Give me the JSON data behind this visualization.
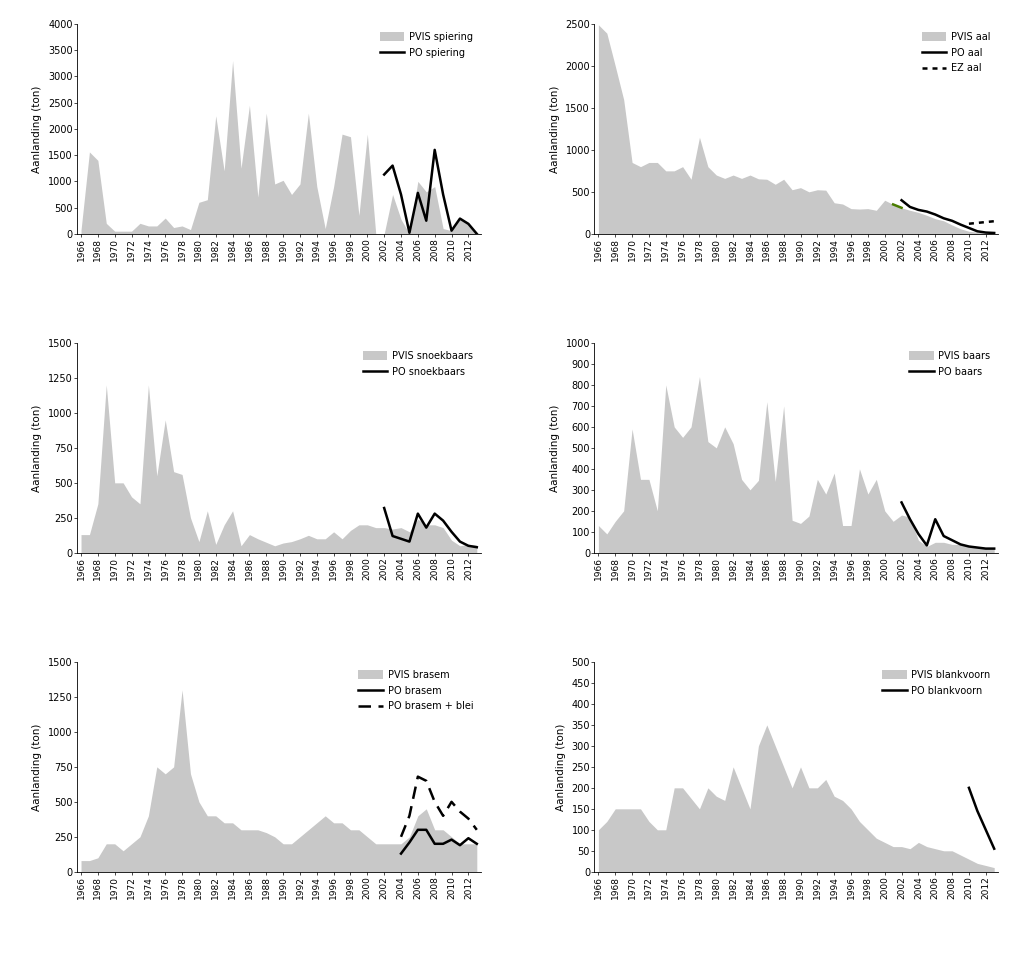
{
  "years": [
    1966,
    1967,
    1968,
    1969,
    1970,
    1971,
    1972,
    1973,
    1974,
    1975,
    1976,
    1977,
    1978,
    1979,
    1980,
    1981,
    1982,
    1983,
    1984,
    1985,
    1986,
    1987,
    1988,
    1989,
    1990,
    1991,
    1992,
    1993,
    1994,
    1995,
    1996,
    1997,
    1998,
    1999,
    2000,
    2001,
    2002,
    2003,
    2004,
    2005,
    2006,
    2007,
    2008,
    2009,
    2010,
    2011,
    2012,
    2013
  ],
  "spiering_pvis": [
    70,
    1560,
    1400,
    200,
    50,
    50,
    50,
    200,
    150,
    150,
    300,
    120,
    150,
    80,
    600,
    650,
    2250,
    1200,
    3300,
    1250,
    2450,
    700,
    2300,
    950,
    1020,
    750,
    950,
    2300,
    900,
    100,
    900,
    1900,
    1850,
    350,
    1900,
    0,
    0,
    750,
    275,
    0,
    1000,
    800,
    900,
    100,
    60,
    290,
    190,
    0
  ],
  "spiering_po": [
    null,
    null,
    null,
    null,
    null,
    null,
    null,
    null,
    null,
    null,
    null,
    null,
    null,
    null,
    null,
    null,
    null,
    null,
    null,
    null,
    null,
    null,
    null,
    null,
    null,
    null,
    null,
    null,
    null,
    null,
    null,
    null,
    null,
    null,
    null,
    null,
    1130,
    1300,
    750,
    20,
    780,
    250,
    1600,
    750,
    60,
    290,
    190,
    0
  ],
  "aal_pvis": [
    2490,
    2390,
    2000,
    1600,
    850,
    800,
    850,
    850,
    750,
    750,
    800,
    650,
    1150,
    800,
    700,
    660,
    700,
    660,
    700,
    655,
    650,
    590,
    650,
    525,
    550,
    500,
    525,
    520,
    370,
    355,
    300,
    295,
    300,
    280,
    400,
    350,
    310,
    280,
    255,
    220,
    180,
    155,
    105,
    60,
    30,
    20,
    10,
    10
  ],
  "aal_po": [
    null,
    null,
    null,
    null,
    null,
    null,
    null,
    null,
    null,
    null,
    null,
    null,
    null,
    null,
    null,
    null,
    null,
    null,
    null,
    null,
    null,
    null,
    null,
    null,
    null,
    null,
    null,
    null,
    null,
    null,
    null,
    null,
    null,
    null,
    null,
    null,
    400,
    320,
    285,
    265,
    230,
    185,
    155,
    110,
    70,
    30,
    15,
    10
  ],
  "aal_ez": [
    null,
    null,
    null,
    null,
    null,
    null,
    null,
    null,
    null,
    null,
    null,
    null,
    null,
    null,
    null,
    null,
    null,
    null,
    null,
    null,
    null,
    null,
    null,
    null,
    null,
    null,
    null,
    null,
    null,
    null,
    null,
    null,
    null,
    null,
    null,
    null,
    null,
    null,
    null,
    null,
    null,
    null,
    null,
    null,
    120,
    130,
    140,
    150
  ],
  "snoekbaars_pvis": [
    130,
    130,
    350,
    1200,
    500,
    500,
    400,
    350,
    1200,
    550,
    950,
    580,
    560,
    250,
    80,
    300,
    60,
    200,
    300,
    50,
    130,
    100,
    75,
    50,
    70,
    80,
    100,
    125,
    100,
    100,
    150,
    100,
    160,
    200,
    200,
    180,
    180,
    170,
    180,
    150,
    240,
    200,
    200,
    180,
    90,
    50,
    60,
    55
  ],
  "snoekbaars_po": [
    null,
    null,
    null,
    null,
    null,
    null,
    null,
    null,
    null,
    null,
    null,
    null,
    null,
    null,
    null,
    null,
    null,
    null,
    null,
    null,
    null,
    null,
    null,
    null,
    null,
    null,
    null,
    null,
    null,
    null,
    null,
    null,
    null,
    null,
    null,
    null,
    320,
    120,
    100,
    80,
    280,
    180,
    280,
    230,
    150,
    80,
    50,
    40
  ],
  "baars_pvis": [
    130,
    90,
    150,
    200,
    590,
    350,
    350,
    200,
    800,
    600,
    550,
    600,
    840,
    530,
    500,
    600,
    520,
    350,
    300,
    345,
    720,
    340,
    700,
    155,
    140,
    175,
    350,
    280,
    380,
    130,
    130,
    400,
    280,
    350,
    200,
    150,
    180,
    170,
    60,
    30,
    50,
    50,
    40,
    40,
    30,
    25,
    20,
    20
  ],
  "baars_po": [
    null,
    null,
    null,
    null,
    null,
    null,
    null,
    null,
    null,
    null,
    null,
    null,
    null,
    null,
    null,
    null,
    null,
    null,
    null,
    null,
    null,
    null,
    null,
    null,
    null,
    null,
    null,
    null,
    null,
    null,
    null,
    null,
    null,
    null,
    null,
    null,
    240,
    160,
    90,
    35,
    160,
    80,
    60,
    40,
    30,
    25,
    20,
    20
  ],
  "brasem_pvis": [
    80,
    80,
    100,
    200,
    200,
    150,
    200,
    250,
    400,
    750,
    700,
    750,
    1300,
    700,
    500,
    400,
    400,
    350,
    350,
    300,
    300,
    300,
    280,
    250,
    200,
    200,
    250,
    300,
    350,
    400,
    350,
    350,
    300,
    300,
    250,
    200,
    200,
    200,
    200,
    250,
    400,
    450,
    300,
    300,
    250,
    200,
    200,
    200
  ],
  "brasem_po": [
    null,
    null,
    null,
    null,
    null,
    null,
    null,
    null,
    null,
    null,
    null,
    null,
    null,
    null,
    null,
    null,
    null,
    null,
    null,
    null,
    null,
    null,
    null,
    null,
    null,
    null,
    null,
    null,
    null,
    null,
    null,
    null,
    null,
    null,
    null,
    null,
    null,
    null,
    130,
    210,
    300,
    300,
    200,
    200,
    230,
    190,
    240,
    200
  ],
  "brasem_blei_po": [
    null,
    null,
    null,
    null,
    null,
    null,
    null,
    null,
    null,
    null,
    null,
    null,
    null,
    null,
    null,
    null,
    null,
    null,
    null,
    null,
    null,
    null,
    null,
    null,
    null,
    null,
    null,
    null,
    null,
    null,
    null,
    null,
    null,
    null,
    null,
    null,
    null,
    null,
    250,
    400,
    680,
    650,
    500,
    400,
    500,
    430,
    380,
    300
  ],
  "blankvoorn_pvis": [
    100,
    120,
    150,
    150,
    150,
    150,
    120,
    100,
    100,
    200,
    200,
    175,
    150,
    200,
    180,
    170,
    250,
    200,
    150,
    300,
    350,
    300,
    250,
    200,
    250,
    200,
    200,
    220,
    180,
    170,
    150,
    120,
    100,
    80,
    70,
    60,
    60,
    55,
    70,
    60,
    55,
    50,
    50,
    40,
    30,
    20,
    15,
    10
  ],
  "blankvoorn_po": [
    null,
    null,
    null,
    null,
    null,
    null,
    null,
    null,
    null,
    null,
    null,
    null,
    null,
    null,
    null,
    null,
    null,
    null,
    null,
    null,
    null,
    null,
    null,
    null,
    null,
    null,
    null,
    null,
    null,
    null,
    null,
    null,
    null,
    null,
    null,
    null,
    null,
    null,
    null,
    null,
    null,
    null,
    null,
    null,
    200,
    145,
    100,
    55
  ],
  "fill_color": "#c8c8c8",
  "line_color": "#000000",
  "green_color": "#4a7c00",
  "ylabel": "Aanlanding (ton)",
  "ylim_spiering": [
    0,
    4000
  ],
  "yticks_spiering": [
    0,
    500,
    1000,
    1500,
    2000,
    2500,
    3000,
    3500,
    4000
  ],
  "ylim_aal": [
    0,
    2500
  ],
  "yticks_aal": [
    0,
    500,
    1000,
    1500,
    2000,
    2500
  ],
  "ylim_snoekbaars": [
    0,
    1500
  ],
  "yticks_snoekbaars": [
    0,
    250,
    500,
    750,
    1000,
    1250,
    1500
  ],
  "ylim_baars": [
    0,
    1000
  ],
  "yticks_baars": [
    0,
    100,
    200,
    300,
    400,
    500,
    600,
    700,
    800,
    900,
    1000
  ],
  "ylim_brasem": [
    0,
    1500
  ],
  "yticks_brasem": [
    0,
    250,
    500,
    750,
    1000,
    1250,
    1500
  ],
  "ylim_blankvoorn": [
    0,
    500
  ],
  "yticks_blankvoorn": [
    0,
    50,
    100,
    150,
    200,
    250,
    300,
    350,
    400,
    450,
    500
  ]
}
